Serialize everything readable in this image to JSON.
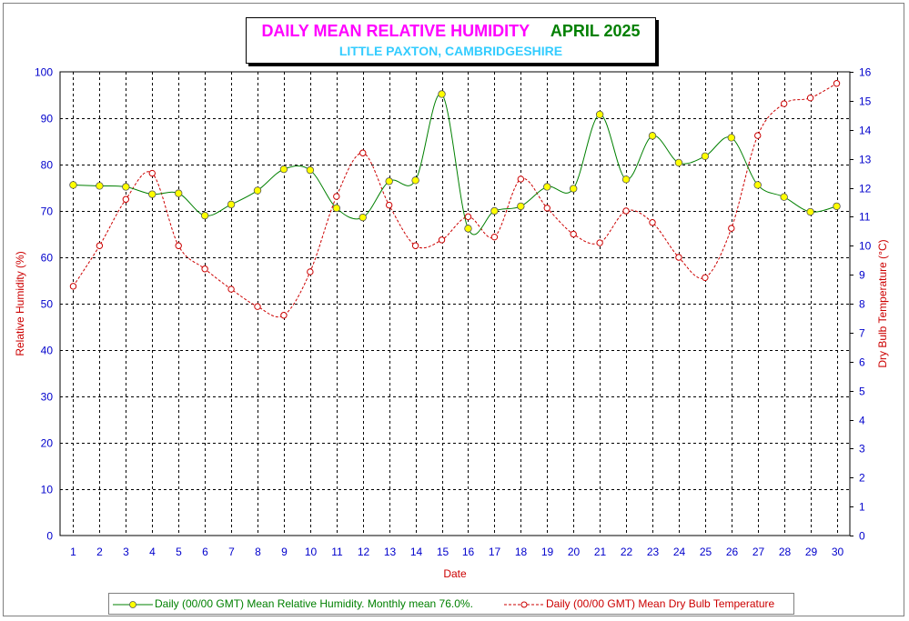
{
  "title": {
    "main": "DAILY MEAN RELATIVE HUMIDITY",
    "period": "APRIL 2025",
    "subtitle": "LITTLE PAXTON, CAMBRIDGESHIRE"
  },
  "colors": {
    "humidity_line": "#008000",
    "humidity_marker": "#ffff00",
    "temperature_line": "#cc0000",
    "left_axis_text": "#0000cc",
    "axis_title": "#cc0000"
  },
  "legend": {
    "humidity": "Daily (00/00 GMT) Mean Relative Humidity. Monthly mean 76.0%.",
    "temperature": "Daily (00/00 GMT) Mean Dry Bulb Temperature"
  },
  "chart_data": {
    "type": "line",
    "xlabel": "Date",
    "ylabel": "Relative Humidity (%)",
    "y2label": "Dry Bulb Temperature (°C)",
    "x": [
      1,
      2,
      3,
      4,
      5,
      6,
      7,
      8,
      9,
      10,
      11,
      12,
      13,
      14,
      15,
      16,
      17,
      18,
      19,
      20,
      21,
      22,
      23,
      24,
      25,
      26,
      27,
      28,
      29,
      30
    ],
    "xlim": [
      0.5,
      30.5
    ],
    "ylim": [
      0,
      100
    ],
    "y2lim": [
      0,
      16
    ],
    "yticks": [
      0,
      10,
      20,
      30,
      40,
      50,
      60,
      70,
      80,
      90,
      100
    ],
    "y2ticks": [
      0,
      1,
      2,
      3,
      4,
      5,
      6,
      7,
      8,
      9,
      10,
      11,
      12,
      13,
      14,
      15,
      16
    ],
    "grid": true,
    "legend_position": "bottom",
    "series": [
      {
        "name": "Daily (00/00 GMT) Mean Relative Humidity. Monthly mean 76.0%.",
        "axis": "left",
        "values": [
          75.6,
          75.4,
          75.2,
          73.6,
          73.8,
          69.0,
          71.4,
          74.4,
          79.0,
          78.8,
          70.6,
          68.6,
          76.4,
          76.6,
          95.2,
          66.2,
          70.0,
          71.0,
          75.2,
          74.8,
          90.8,
          76.8,
          86.2,
          80.4,
          81.8,
          85.8,
          75.6,
          73.0,
          69.8,
          71.0
        ]
      },
      {
        "name": "Daily (00/00 GMT) Mean Dry Bulb Temperature",
        "axis": "right",
        "values": [
          8.6,
          10.0,
          11.6,
          12.5,
          10.0,
          9.2,
          8.5,
          7.9,
          7.6,
          9.1,
          11.7,
          13.2,
          11.4,
          10.0,
          10.2,
          11.0,
          10.3,
          12.3,
          11.3,
          10.4,
          10.1,
          11.2,
          10.8,
          9.6,
          8.9,
          10.6,
          13.8,
          14.9,
          15.1,
          15.6
        ]
      }
    ]
  }
}
